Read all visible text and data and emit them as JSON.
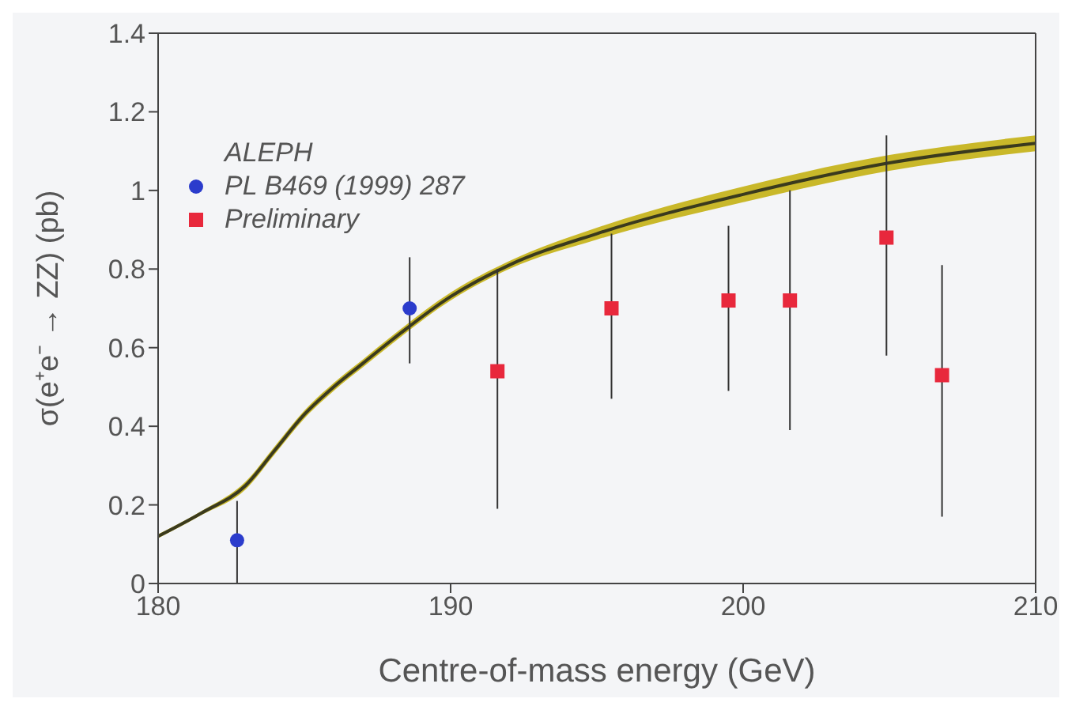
{
  "chart_data": {
    "type": "scatter",
    "xlabel": "Centre-of-mass energy (GeV)",
    "ylabel": "σ(e⁺e⁻ → ZZ) (pb)",
    "legend_title": "ALEPH",
    "legend": "top left",
    "xlim": [
      180,
      210
    ],
    "xticks": [
      180,
      190,
      200,
      210
    ],
    "ylim": [
      0,
      1.4
    ],
    "yticks": [
      0,
      0.2,
      0.4,
      0.6,
      0.8,
      1,
      1.2,
      1.4
    ],
    "series": [
      {
        "type": "line",
        "color": "#3a3a1e",
        "x": [
          180,
          181.5,
          183,
          184,
          185,
          186,
          187,
          188,
          190,
          192,
          195,
          200,
          205,
          210
        ],
        "values": [
          0.12,
          0.18,
          0.25,
          0.34,
          0.43,
          0.5,
          0.56,
          0.62,
          0.73,
          0.81,
          0.89,
          0.99,
          1.07,
          1.12
        ],
        "lower": [
          0.115,
          0.175,
          0.24,
          0.33,
          0.42,
          0.49,
          0.55,
          0.61,
          0.72,
          0.8,
          0.875,
          0.97,
          1.05,
          1.1
        ],
        "upper": [
          0.125,
          0.185,
          0.26,
          0.35,
          0.44,
          0.51,
          0.57,
          0.63,
          0.74,
          0.82,
          0.905,
          1.01,
          1.09,
          1.14
        ]
      },
      {
        "name": "PL B469 (1999) 287",
        "color": "#2b3ccc",
        "marker": "circle",
        "x": [
          182.7,
          188.6
        ],
        "values": [
          0.11,
          0.7
        ],
        "errors": [
          [
            0,
            0.21
          ],
          [
            0.56,
            0.83
          ]
        ]
      },
      {
        "name": "Preliminary",
        "color": "#e8283c",
        "marker": "square",
        "x": [
          191.6,
          195.5,
          199.5,
          201.6,
          204.9,
          206.8
        ],
        "values": [
          0.54,
          0.7,
          0.72,
          0.72,
          0.88,
          0.53
        ],
        "errors": [
          [
            0.19,
            0.8
          ],
          [
            0.47,
            0.89
          ],
          [
            0.49,
            0.91
          ],
          [
            0.39,
            1.0
          ],
          [
            0.58,
            1.14
          ],
          [
            0.17,
            0.81
          ]
        ]
      }
    ]
  }
}
